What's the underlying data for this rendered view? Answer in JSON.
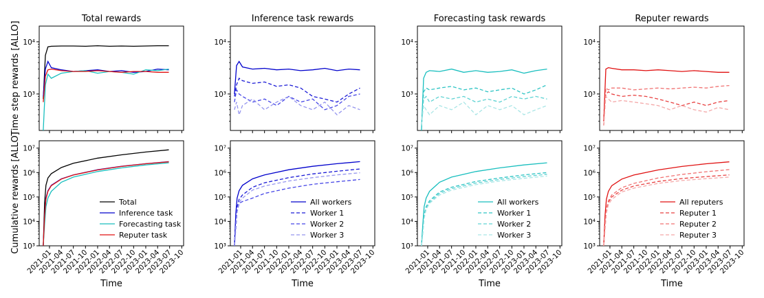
{
  "figure": {
    "ylabel_top": "Time step rewards [ALLO]",
    "ylabel_bottom": "Cumulative rewards [ALLO]",
    "xlabel": "Time",
    "x_ticks": [
      "2021-01",
      "2021-04",
      "2021-07",
      "2021-10",
      "2022-01",
      "2022-04",
      "2022-07",
      "2022-10",
      "2023-01",
      "2023-04",
      "2023-07",
      "2023-10"
    ]
  },
  "chart_data": [
    {
      "id": "total-step",
      "type": "line",
      "title": "Total rewards",
      "ylabel": "Time step rewards [ALLO]",
      "yscale": "log",
      "ylim": [
        200,
        20000
      ],
      "y_ticks": [
        1000,
        10000
      ],
      "y_tick_labels": [
        "10³",
        "10⁴"
      ],
      "x": [
        "2020-11-15",
        "2020-12-01",
        "2020-12-20",
        "2021-01-15",
        "2021-04-01",
        "2021-07-01",
        "2021-10-01",
        "2022-01-01",
        "2022-04-01",
        "2022-07-01",
        "2022-10-01",
        "2023-01-01",
        "2023-04-01",
        "2023-06-25"
      ],
      "series": [
        {
          "name": "Total",
          "color": "#000000",
          "dash": "solid",
          "values": [
            800,
            5500,
            8000,
            8200,
            8300,
            8300,
            8200,
            8400,
            8200,
            8300,
            8200,
            8300,
            8400,
            8400
          ]
        },
        {
          "name": "Inference task",
          "color": "#0000cc",
          "dash": "solid",
          "values": [
            900,
            3000,
            4200,
            3200,
            2900,
            2700,
            2800,
            2900,
            2700,
            2800,
            2600,
            2700,
            3000,
            2900
          ]
        },
        {
          "name": "Forecasting task",
          "color": "#17bebe",
          "dash": "solid",
          "values": [
            200,
            1500,
            2400,
            2000,
            2500,
            2700,
            2800,
            2500,
            2700,
            2600,
            2400,
            2900,
            2800,
            3000
          ]
        },
        {
          "name": "Reputer task",
          "color": "#e01010",
          "dash": "solid",
          "values": [
            700,
            2200,
            2900,
            3000,
            2800,
            2700,
            2700,
            2800,
            2700,
            2600,
            2700,
            2700,
            2600,
            2600
          ]
        }
      ]
    },
    {
      "id": "inference-step",
      "type": "line",
      "title": "Inference task rewards",
      "yscale": "log",
      "ylim": [
        200,
        20000
      ],
      "y_ticks": [
        1000,
        10000
      ],
      "y_tick_labels": [
        "10³",
        "10⁴"
      ],
      "x": [
        "2020-11-15",
        "2020-12-01",
        "2020-12-20",
        "2021-01-15",
        "2021-04-01",
        "2021-07-01",
        "2021-10-01",
        "2022-01-01",
        "2022-04-01",
        "2022-07-01",
        "2022-10-01",
        "2023-01-01",
        "2023-04-01",
        "2023-06-25"
      ],
      "series": [
        {
          "name": "All workers",
          "color": "#0000cc",
          "dash": "solid",
          "values": [
            1000,
            3500,
            4200,
            3300,
            3000,
            3100,
            2900,
            3000,
            2800,
            2900,
            3100,
            2800,
            3000,
            2900
          ]
        },
        {
          "name": "Worker 1",
          "color": "#1a1ad6",
          "dash": "dashed",
          "values": [
            900,
            1500,
            2000,
            1800,
            1600,
            1700,
            1400,
            1500,
            1300,
            900,
            800,
            700,
            1000,
            1300
          ]
        },
        {
          "name": "Worker 2",
          "color": "#4545e6",
          "dash": "dashed",
          "values": [
            700,
            1200,
            1000,
            900,
            700,
            800,
            600,
            900,
            700,
            800,
            500,
            600,
            900,
            1000
          ]
        },
        {
          "name": "Worker 3",
          "color": "#9494ee",
          "dash": "dashed",
          "values": [
            500,
            700,
            400,
            600,
            800,
            500,
            700,
            900,
            600,
            500,
            700,
            400,
            600,
            500
          ]
        }
      ]
    },
    {
      "id": "forecast-step",
      "type": "line",
      "title": "Forecasting task rewards",
      "yscale": "log",
      "ylim": [
        200,
        20000
      ],
      "y_ticks": [
        1000,
        10000
      ],
      "y_tick_labels": [
        "10³",
        "10⁴"
      ],
      "x": [
        "2020-11-15",
        "2020-12-01",
        "2020-12-20",
        "2021-01-15",
        "2021-04-01",
        "2021-07-01",
        "2021-10-01",
        "2022-01-01",
        "2022-04-01",
        "2022-07-01",
        "2022-10-01",
        "2023-01-01",
        "2023-04-01",
        "2023-06-25"
      ],
      "series": [
        {
          "name": "All workers",
          "color": "#17bebe",
          "dash": "solid",
          "values": [
            200,
            2000,
            2600,
            2800,
            2700,
            3000,
            2600,
            2800,
            2600,
            2700,
            2900,
            2500,
            2800,
            3000
          ]
        },
        {
          "name": "Worker 1",
          "color": "#2ec4c4",
          "dash": "dashed",
          "values": [
            250,
            1100,
            1300,
            1200,
            1300,
            1400,
            1200,
            1300,
            1100,
            1200,
            1300,
            1000,
            1200,
            1500
          ]
        },
        {
          "name": "Worker 2",
          "color": "#5fd3d3",
          "dash": "dashed",
          "values": [
            250,
            800,
            900,
            700,
            900,
            800,
            900,
            700,
            800,
            700,
            900,
            800,
            900,
            800
          ]
        },
        {
          "name": "Worker 3",
          "color": "#a9e6e6",
          "dash": "dashed",
          "values": [
            250,
            600,
            500,
            400,
            600,
            500,
            700,
            400,
            600,
            500,
            600,
            400,
            500,
            600
          ]
        }
      ]
    },
    {
      "id": "reputer-step",
      "type": "line",
      "title": "Reputer rewards",
      "yscale": "log",
      "ylim": [
        200,
        20000
      ],
      "y_ticks": [
        1000,
        10000
      ],
      "y_tick_labels": [
        "10³",
        "10⁴"
      ],
      "x": [
        "2020-11-15",
        "2020-12-01",
        "2020-12-20",
        "2021-01-15",
        "2021-04-01",
        "2021-07-01",
        "2021-10-01",
        "2022-01-01",
        "2022-04-01",
        "2022-07-01",
        "2022-10-01",
        "2023-01-01",
        "2023-04-01",
        "2023-06-25"
      ],
      "series": [
        {
          "name": "All reputers",
          "color": "#e01010",
          "dash": "solid",
          "values": [
            300,
            3000,
            3200,
            3100,
            2900,
            2900,
            2800,
            2900,
            2800,
            2700,
            2800,
            2700,
            2600,
            2600
          ]
        },
        {
          "name": "Reputer 1",
          "color": "#e84040",
          "dash": "dashed",
          "values": [
            250,
            1000,
            1100,
            1000,
            900,
            950,
            900,
            800,
            700,
            600,
            700,
            600,
            700,
            750
          ]
        },
        {
          "name": "Reputer 2",
          "color": "#f07070",
          "dash": "dashed",
          "values": [
            250,
            1300,
            1200,
            1300,
            1300,
            1200,
            1250,
            1300,
            1250,
            1300,
            1350,
            1300,
            1400,
            1450
          ]
        },
        {
          "name": "Reputer 3",
          "color": "#f4a8a8",
          "dash": "dashed",
          "values": [
            250,
            900,
            800,
            700,
            750,
            700,
            650,
            600,
            500,
            600,
            500,
            450,
            550,
            500
          ]
        }
      ]
    },
    {
      "id": "total-cum",
      "type": "line",
      "ylabel": "Cumulative rewards [ALLO]",
      "xlabel": "Time",
      "yscale": "log",
      "ylim": [
        1000,
        20000000
      ],
      "y_ticks": [
        1000,
        10000,
        100000,
        1000000,
        10000000
      ],
      "y_tick_labels": [
        "10³",
        "10⁴",
        "10⁵",
        "10⁶",
        "10⁷"
      ],
      "legend_position": "lower-right",
      "x": [
        "2020-11-15",
        "2020-11-25",
        "2020-12-05",
        "2020-12-20",
        "2021-01-15",
        "2021-04-01",
        "2021-07-01",
        "2022-01-01",
        "2022-07-01",
        "2023-01-01",
        "2023-06-25"
      ],
      "series": [
        {
          "name": "Total",
          "color": "#000000",
          "dash": "solid",
          "values": [
            1000,
            60000,
            300000,
            600000,
            900000,
            1600000,
            2400000,
            3900000,
            5300000,
            6900000,
            8500000
          ]
        },
        {
          "name": "Inference task",
          "color": "#0000cc",
          "dash": "solid",
          "values": [
            1000,
            20000,
            90000,
            180000,
            300000,
            550000,
            800000,
            1300000,
            1800000,
            2300000,
            2800000
          ]
        },
        {
          "name": "Forecasting task",
          "color": "#17bebe",
          "dash": "solid",
          "values": [
            1000,
            8000,
            40000,
            90000,
            170000,
            400000,
            650000,
            1100000,
            1550000,
            2050000,
            2500000
          ]
        },
        {
          "name": "Reputer task",
          "color": "#e01010",
          "dash": "solid",
          "values": [
            1000,
            18000,
            80000,
            170000,
            290000,
            540000,
            790000,
            1280000,
            1780000,
            2280000,
            2750000
          ]
        }
      ]
    },
    {
      "id": "inference-cum",
      "type": "line",
      "xlabel": "Time",
      "yscale": "log",
      "ylim": [
        1000,
        20000000
      ],
      "y_ticks": [
        1000,
        10000,
        100000,
        1000000,
        10000000
      ],
      "y_tick_labels": [
        "10³",
        "10⁴",
        "10⁵",
        "10⁶",
        "10⁷"
      ],
      "legend_position": "lower-right",
      "x": [
        "2020-11-15",
        "2020-11-25",
        "2020-12-05",
        "2020-12-20",
        "2021-01-15",
        "2021-04-01",
        "2021-07-01",
        "2022-01-01",
        "2022-07-01",
        "2023-01-01",
        "2023-06-25"
      ],
      "series": [
        {
          "name": "All workers",
          "color": "#0000cc",
          "dash": "solid",
          "values": [
            1000,
            20000,
            90000,
            180000,
            300000,
            550000,
            800000,
            1300000,
            1800000,
            2300000,
            2800000
          ]
        },
        {
          "name": "Worker 1",
          "color": "#1a1ad6",
          "dash": "dashed",
          "values": [
            1000,
            9000,
            40000,
            80000,
            120000,
            250000,
            380000,
            620000,
            880000,
            1130000,
            1400000
          ]
        },
        {
          "name": "Worker 2",
          "color": "#4545e6",
          "dash": "dashed",
          "values": [
            1000,
            5000,
            25000,
            55000,
            65000,
            90000,
            140000,
            230000,
            330000,
            420000,
            520000
          ]
        },
        {
          "name": "Worker 3",
          "color": "#9494ee",
          "dash": "dashed",
          "values": [
            1000,
            7000,
            30000,
            60000,
            90000,
            190000,
            280000,
            450000,
            620000,
            800000,
            980000
          ]
        }
      ]
    },
    {
      "id": "forecast-cum",
      "type": "line",
      "xlabel": "Time",
      "yscale": "log",
      "ylim": [
        1000,
        20000000
      ],
      "y_ticks": [
        1000,
        10000,
        100000,
        1000000,
        10000000
      ],
      "y_tick_labels": [
        "10³",
        "10⁴",
        "10⁵",
        "10⁶",
        "10⁷"
      ],
      "legend_position": "lower-right",
      "x": [
        "2020-11-15",
        "2020-11-25",
        "2020-12-05",
        "2020-12-20",
        "2021-01-15",
        "2021-04-01",
        "2021-07-01",
        "2022-01-01",
        "2022-07-01",
        "2023-01-01",
        "2023-06-25"
      ],
      "series": [
        {
          "name": "All workers",
          "color": "#17bebe",
          "dash": "solid",
          "values": [
            1000,
            8000,
            40000,
            90000,
            170000,
            400000,
            650000,
            1100000,
            1550000,
            2050000,
            2500000
          ]
        },
        {
          "name": "Worker 1",
          "color": "#2ec4c4",
          "dash": "dashed",
          "values": [
            1000,
            4000,
            18000,
            40000,
            70000,
            160000,
            250000,
            430000,
            600000,
            800000,
            1000000
          ]
        },
        {
          "name": "Worker 2",
          "color": "#5fd3d3",
          "dash": "dashed",
          "values": [
            1000,
            3500,
            15000,
            33000,
            60000,
            140000,
            220000,
            370000,
            520000,
            680000,
            850000
          ]
        },
        {
          "name": "Worker 3",
          "color": "#a9e6e6",
          "dash": "dashed",
          "values": [
            1000,
            3000,
            13000,
            30000,
            55000,
            120000,
            190000,
            320000,
            450000,
            580000,
            720000
          ]
        }
      ]
    },
    {
      "id": "reputer-cum",
      "type": "line",
      "xlabel": "Time",
      "yscale": "log",
      "ylim": [
        1000,
        20000000
      ],
      "y_ticks": [
        1000,
        10000,
        100000,
        1000000,
        10000000
      ],
      "y_tick_labels": [
        "10³",
        "10⁴",
        "10⁵",
        "10⁶",
        "10⁷"
      ],
      "legend_position": "lower-right",
      "x": [
        "2020-11-15",
        "2020-11-25",
        "2020-12-05",
        "2020-12-20",
        "2021-01-15",
        "2021-04-01",
        "2021-07-01",
        "2022-01-01",
        "2022-07-01",
        "2023-01-01",
        "2023-06-25"
      ],
      "series": [
        {
          "name": "All reputers",
          "color": "#e01010",
          "dash": "solid",
          "values": [
            1000,
            18000,
            80000,
            170000,
            290000,
            540000,
            790000,
            1280000,
            1780000,
            2280000,
            2750000
          ]
        },
        {
          "name": "Reputer 1",
          "color": "#e84040",
          "dash": "dashed",
          "values": [
            1000,
            6000,
            28000,
            60000,
            100000,
            190000,
            280000,
            430000,
            570000,
            680000,
            800000
          ]
        },
        {
          "name": "Reputer 2",
          "color": "#f07070",
          "dash": "dashed",
          "values": [
            1000,
            7000,
            33000,
            70000,
            120000,
            240000,
            360000,
            600000,
            840000,
            1080000,
            1320000
          ]
        },
        {
          "name": "Reputer 3",
          "color": "#f4a8a8",
          "dash": "dashed",
          "values": [
            1000,
            4500,
            22000,
            48000,
            80000,
            160000,
            230000,
            360000,
            470000,
            560000,
            650000
          ]
        }
      ]
    }
  ]
}
